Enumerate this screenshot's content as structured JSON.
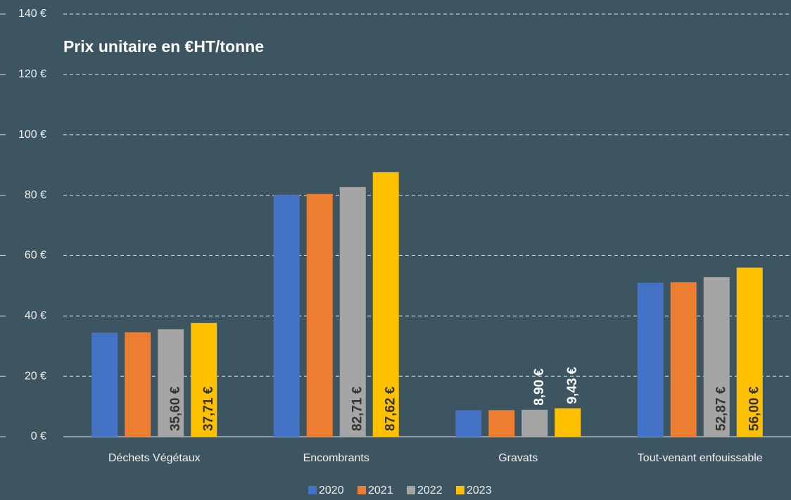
{
  "chart_data": {
    "type": "bar",
    "title": "Prix unitaire en €HT/tonne",
    "categories": [
      "Déchets Végétaux",
      "Encombrants",
      "Gravats",
      "Tout-venant enfouissable"
    ],
    "series": [
      {
        "name": "2020",
        "color": "#4472c4",
        "values": [
          34.5,
          80.1,
          8.8,
          51.0
        ]
      },
      {
        "name": "2021",
        "color": "#ed7d31",
        "values": [
          34.6,
          80.4,
          8.8,
          51.2
        ]
      },
      {
        "name": "2022",
        "color": "#a5a5a5",
        "values": [
          35.6,
          82.71,
          8.9,
          52.87
        ],
        "value_labels": [
          "35,60 €",
          "82,71 €",
          "8,90 €",
          "52,87 €"
        ]
      },
      {
        "name": "2023",
        "color": "#ffc000",
        "values": [
          37.71,
          87.62,
          9.43,
          56.0
        ],
        "value_labels": [
          "37,71 €",
          "87,62 €",
          "9,43 €",
          "56,00 €"
        ]
      }
    ],
    "ylim": [
      0,
      140
    ],
    "yticks": [
      {
        "value": 0,
        "label": "0 €"
      },
      {
        "value": 20,
        "label": "20 €"
      },
      {
        "value": 40,
        "label": "40 €"
      },
      {
        "value": 60,
        "label": "60 €"
      },
      {
        "value": 80,
        "label": "80 €"
      },
      {
        "value": 100,
        "label": "100 €"
      },
      {
        "value": 120,
        "label": "120 €"
      },
      {
        "value": 140,
        "label": "140 €"
      }
    ],
    "grid": true,
    "legend": "bottom"
  }
}
